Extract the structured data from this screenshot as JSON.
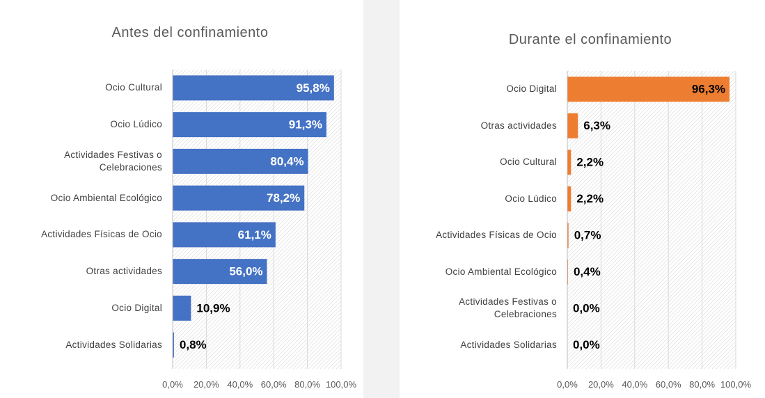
{
  "chart_data": [
    {
      "type": "bar",
      "orientation": "horizontal",
      "title": "Antes del confinamiento",
      "categories": [
        "Ocio Cultural",
        "Ocio Lúdico",
        "Actividades Festivas o Celebraciones",
        "Ocio Ambiental Ecológico",
        "Actividades Físicas de Ocio",
        "Otras actividades",
        "Ocio Digital",
        "Actividades Solidarias"
      ],
      "values": [
        95.8,
        91.3,
        80.4,
        78.2,
        61.1,
        56.0,
        10.9,
        0.8
      ],
      "value_labels": [
        "95,8%",
        "91,3%",
        "80,4%",
        "78,2%",
        "61,1%",
        "56,0%",
        "10,9%",
        "0,8%"
      ],
      "color": "#4472c4",
      "xlim": [
        0,
        100
      ],
      "xticks": [
        {
          "value": 0,
          "label": "0,0%"
        },
        {
          "value": 20,
          "label": "20,0%"
        },
        {
          "value": 40,
          "label": "40,0%"
        },
        {
          "value": 60,
          "label": "60,0%"
        },
        {
          "value": 80,
          "label": "80,0%"
        },
        {
          "value": 100,
          "label": "100,0%"
        }
      ],
      "grid": true
    },
    {
      "type": "bar",
      "orientation": "horizontal",
      "title": "Durante el confinamiento",
      "categories": [
        "Ocio Digital",
        "Otras actividades",
        "Ocio Cultural",
        "Ocio Lúdico",
        "Actividades Físicas de Ocio",
        "Ocio Ambiental Ecológico",
        "Actividades Festivas o Celebraciones",
        "Actividades Solidarias"
      ],
      "values": [
        96.3,
        6.3,
        2.2,
        2.2,
        0.7,
        0.4,
        0.0,
        0.0
      ],
      "value_labels": [
        "96,3%",
        "6,3%",
        "2,2%",
        "2,2%",
        "0,7%",
        "0,4%",
        "0,0%",
        "0,0%"
      ],
      "color": "#ed7d31",
      "xlim": [
        0,
        100
      ],
      "xticks": [
        {
          "value": 0,
          "label": "0,0%"
        },
        {
          "value": 20,
          "label": "20,0%"
        },
        {
          "value": 40,
          "label": "40,0%"
        },
        {
          "value": 60,
          "label": "60,0%"
        },
        {
          "value": 80,
          "label": "80,0%"
        },
        {
          "value": 100,
          "label": "100,0%"
        }
      ],
      "grid": true
    }
  ]
}
